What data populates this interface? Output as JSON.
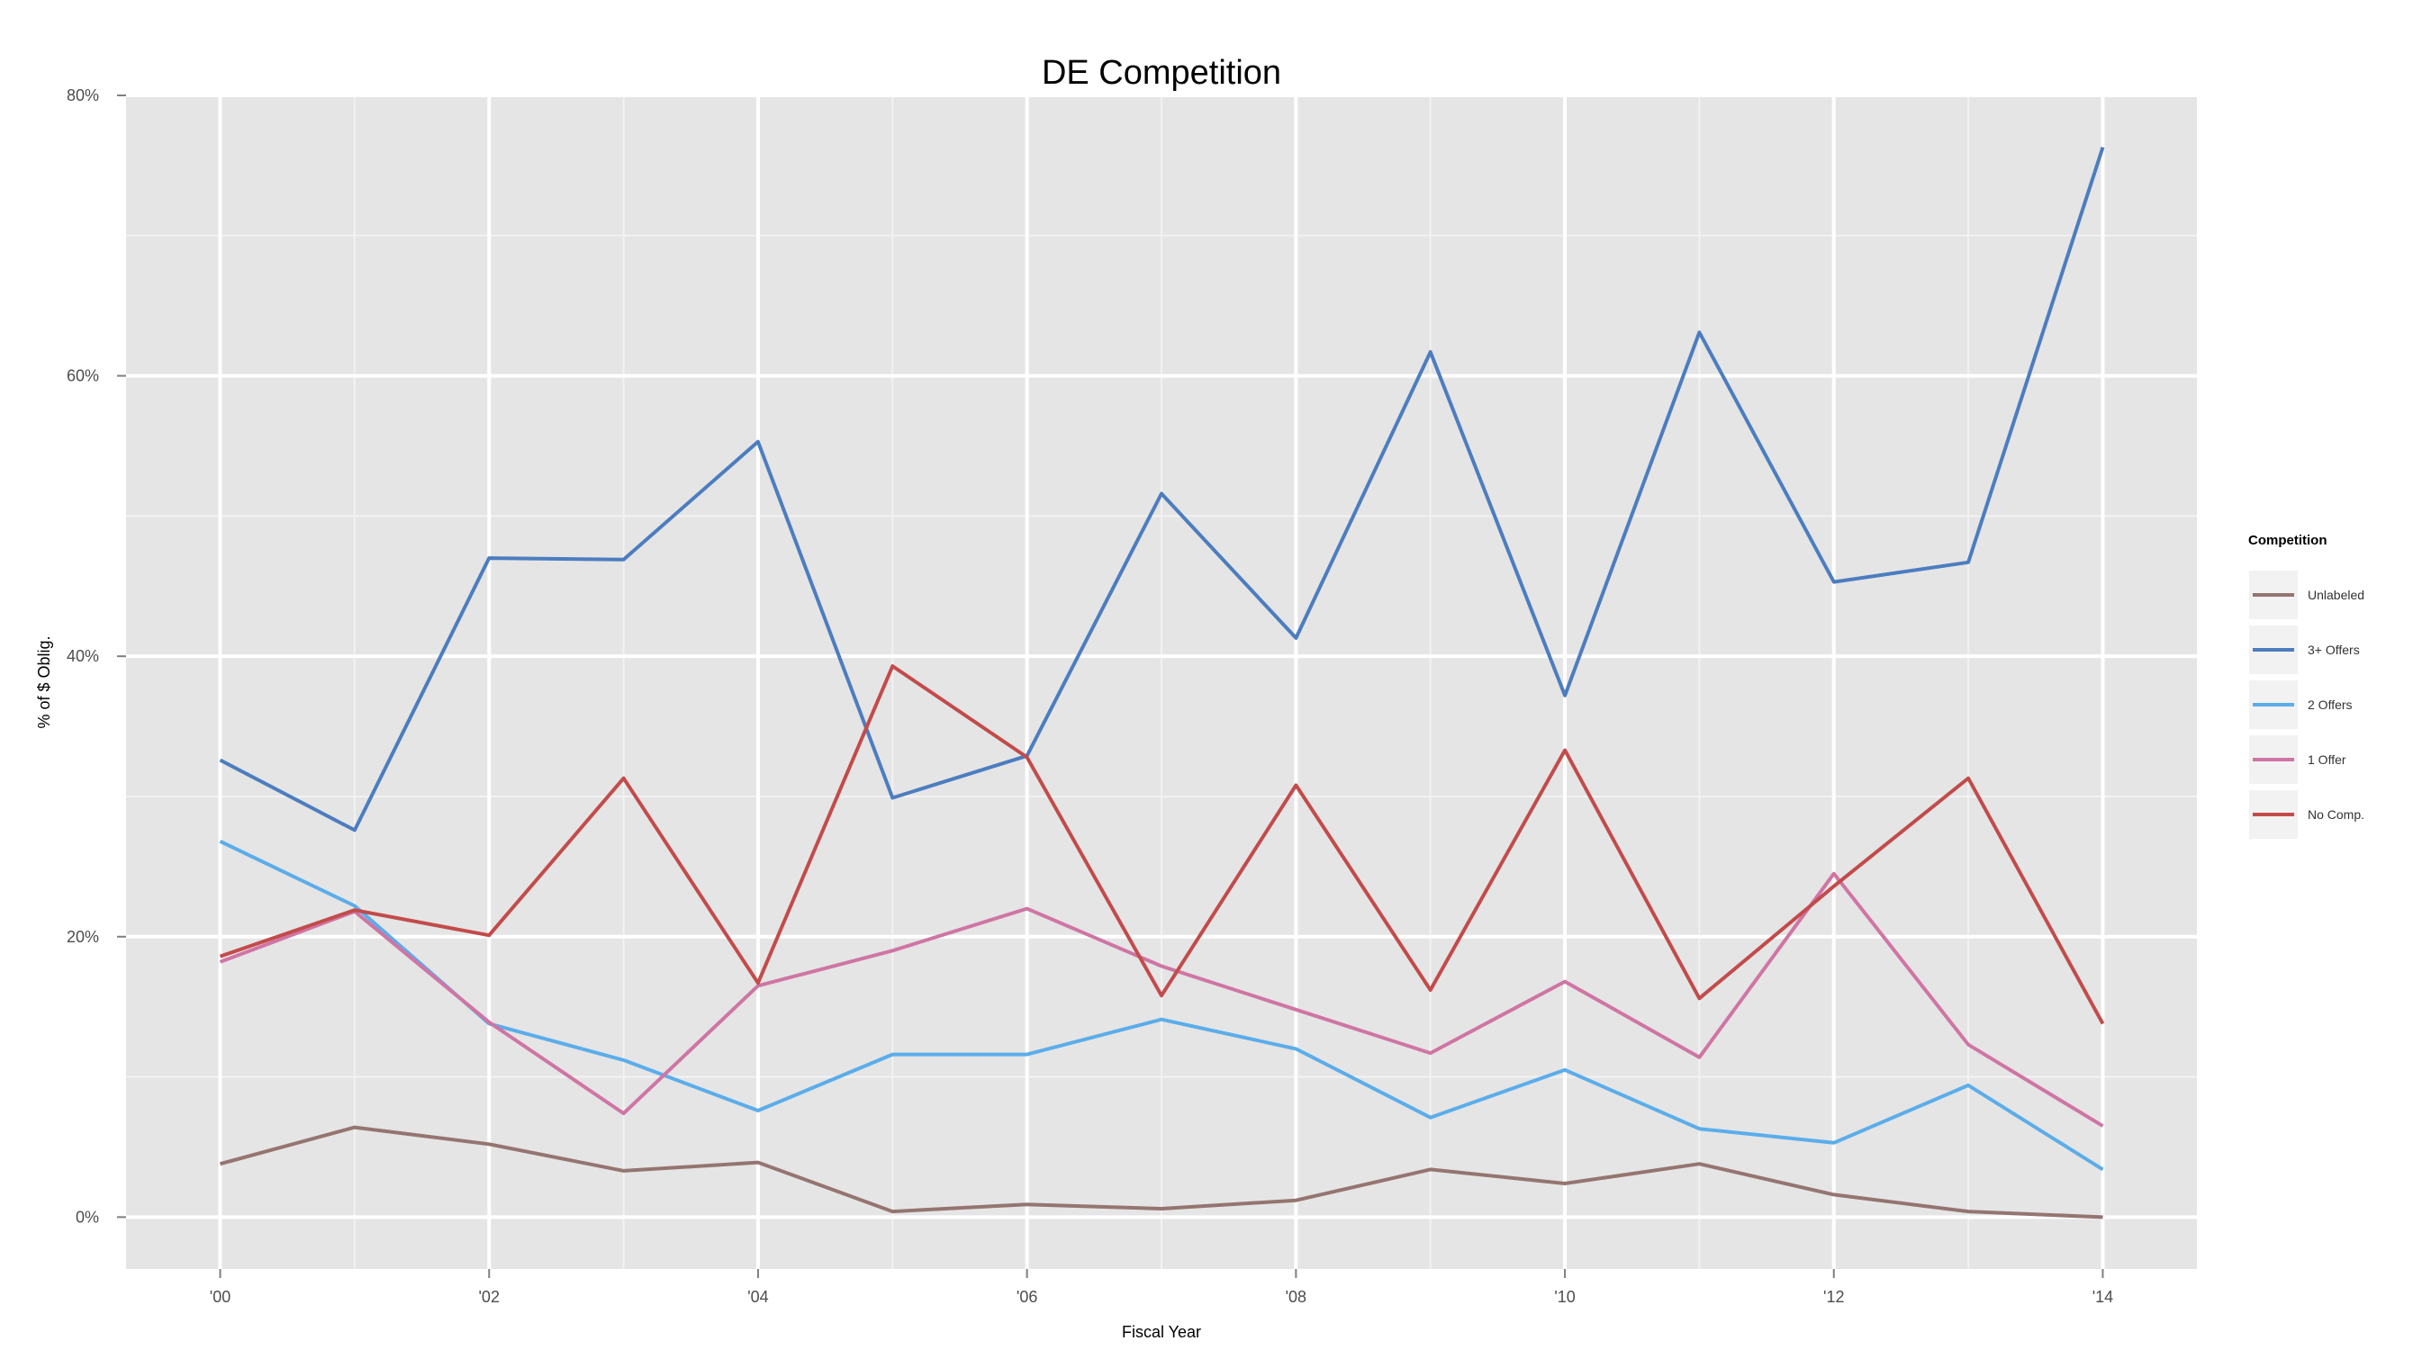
{
  "chart_data": {
    "type": "line",
    "title": "DE Competition",
    "xlabel": "Fiscal Year",
    "ylabel": "% of $ Oblig.",
    "x": [
      2000,
      2001,
      2002,
      2003,
      2004,
      2005,
      2006,
      2007,
      2008,
      2009,
      2010,
      2011,
      2012,
      2013,
      2014
    ],
    "x_ticks": [
      2000,
      2002,
      2004,
      2006,
      2008,
      2010,
      2012,
      2014
    ],
    "x_tick_labels": [
      "'00",
      "'02",
      "'04",
      "'06",
      "'08",
      "'10",
      "'12",
      "'14"
    ],
    "xlim": [
      1999.3,
      2014.7
    ],
    "y_ticks": [
      0,
      20,
      40,
      60,
      80
    ],
    "y_tick_labels": [
      "0%",
      "20%",
      "40%",
      "60%",
      "80%"
    ],
    "ylim": [
      -3.7,
      80
    ],
    "grid": true,
    "legend_title": "Competition",
    "legend_position": "right",
    "series": [
      {
        "name": "Unlabeled",
        "color": "#957571",
        "values": [
          3.8,
          6.4,
          5.2,
          3.3,
          3.9,
          0.4,
          0.9,
          0.6,
          1.2,
          3.4,
          2.4,
          3.8,
          1.6,
          0.4,
          0.0
        ]
      },
      {
        "name": "3+ Offers",
        "color": "#4c7dbf",
        "values": [
          32.6,
          27.6,
          47.0,
          46.9,
          55.3,
          29.9,
          32.9,
          51.6,
          41.3,
          61.7,
          37.2,
          63.1,
          45.3,
          46.7,
          76.3
        ]
      },
      {
        "name": "2 Offers",
        "color": "#5badea",
        "values": [
          26.8,
          22.2,
          13.8,
          11.2,
          7.6,
          11.6,
          11.6,
          14.1,
          12.0,
          7.1,
          10.5,
          6.3,
          5.3,
          9.4,
          3.4
        ]
      },
      {
        "name": "1 Offer",
        "color": "#cf75a4",
        "values": [
          18.2,
          21.8,
          13.9,
          7.4,
          16.5,
          19.0,
          22.0,
          17.9,
          14.8,
          11.7,
          16.8,
          11.4,
          24.5,
          12.3,
          6.5
        ]
      },
      {
        "name": "No Comp.",
        "color": "#c34b4b",
        "values": [
          18.6,
          21.9,
          20.1,
          31.3,
          16.7,
          39.3,
          32.8,
          15.8,
          30.8,
          16.2,
          33.3,
          15.6,
          23.6,
          31.3,
          13.8
        ]
      }
    ]
  }
}
